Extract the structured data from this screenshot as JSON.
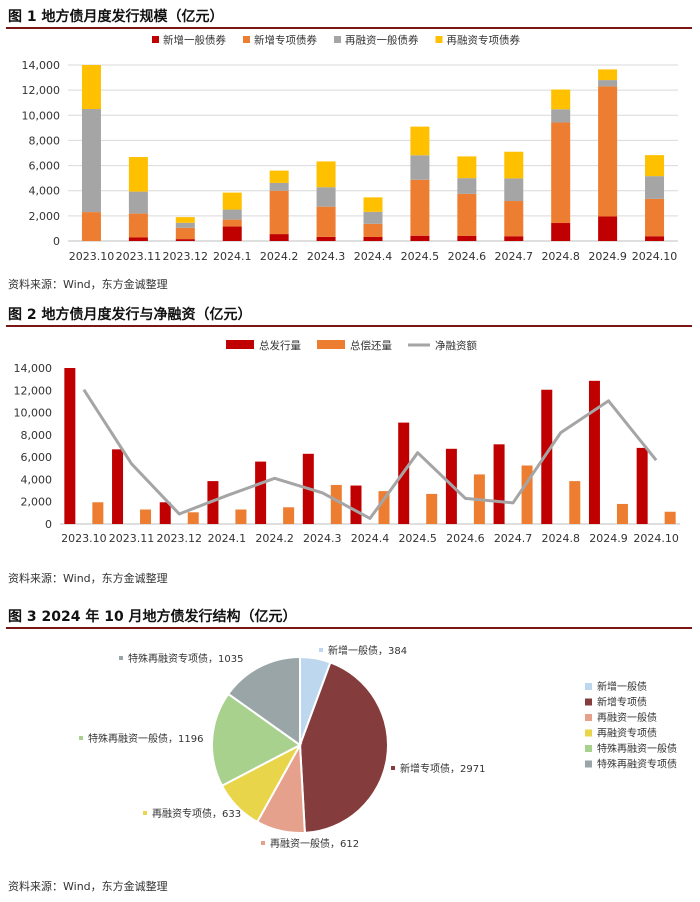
{
  "figures": {
    "fig1": {
      "title": "图 1  地方债月度发行规模（亿元）"
    },
    "fig2": {
      "title": "图 2  地方债月度发行与净融资（亿元）"
    },
    "fig3": {
      "title": "图 3  2024 年 10 月地方债发行结构（亿元）"
    }
  },
  "source": "资料来源：Wind，东方金诚整理",
  "colors": {
    "dark_red": "#c00000",
    "orange": "#ed7d31",
    "gray": "#a5a5a5",
    "gold": "#ffc000",
    "title_rule": "#7a1616"
  },
  "chart_data": [
    {
      "id": "fig1",
      "type": "bar",
      "stacked": true,
      "categories": [
        "2023.10",
        "2023.11",
        "2023.12",
        "2024.1",
        "2024.2",
        "2024.3",
        "2024.4",
        "2024.5",
        "2024.6",
        "2024.7",
        "2024.8",
        "2024.9",
        "2024.10"
      ],
      "ylim": [
        0,
        14000
      ],
      "yticks": [
        0,
        2000,
        4000,
        6000,
        8000,
        10000,
        12000,
        14000
      ],
      "ytick_labels": [
        "0",
        "2,000",
        "4,000",
        "6,000",
        "8,000",
        "10,000",
        "12,000",
        "14,000"
      ],
      "grid": true,
      "legend_position": "top",
      "series": [
        {
          "name": "新增一般债券",
          "color": "#c00000",
          "values": [
            0,
            280,
            150,
            1150,
            550,
            330,
            320,
            420,
            400,
            380,
            1430,
            1950,
            380
          ]
        },
        {
          "name": "新增专项债券",
          "color": "#ed7d31",
          "values": [
            2300,
            1900,
            900,
            550,
            3450,
            2400,
            1050,
            4450,
            3350,
            2800,
            8000,
            10350,
            2970
          ]
        },
        {
          "name": "再融资一般债券",
          "color": "#a5a5a5",
          "values": [
            8200,
            1750,
            400,
            800,
            620,
            1550,
            950,
            1950,
            1250,
            1800,
            1050,
            500,
            1810
          ]
        },
        {
          "name": "再融资专项债券",
          "color": "#ffc000",
          "values": [
            3500,
            2750,
            450,
            1350,
            980,
            2050,
            1150,
            2280,
            1730,
            2120,
            1570,
            850,
            1670
          ]
        }
      ]
    },
    {
      "id": "fig2",
      "type": "bar",
      "categories": [
        "2023.10",
        "2023.11",
        "2023.12",
        "2024.1",
        "2024.2",
        "2024.3",
        "2024.4",
        "2024.5",
        "2024.6",
        "2024.7",
        "2024.8",
        "2024.9",
        "2024.10"
      ],
      "ylim": [
        0,
        14000
      ],
      "yticks": [
        0,
        2000,
        4000,
        6000,
        8000,
        10000,
        12000,
        14000
      ],
      "ytick_labels": [
        "0",
        "2,000",
        "4,000",
        "6,000",
        "8,000",
        "10,000",
        "12,000",
        "14,000"
      ],
      "grid": false,
      "legend_position": "top",
      "series": [
        {
          "name": "总发行量",
          "kind": "bar",
          "color": "#c00000",
          "values": [
            14000,
            6700,
            1950,
            3850,
            5600,
            6300,
            3450,
            9100,
            6750,
            7150,
            12050,
            12850,
            6830
          ]
        },
        {
          "name": "总偿还量",
          "kind": "bar",
          "color": "#ed7d31",
          "values": [
            1950,
            1300,
            1050,
            1300,
            1500,
            3500,
            2950,
            2700,
            4450,
            5250,
            3850,
            1800,
            1100
          ]
        },
        {
          "name": "净融资额",
          "kind": "line",
          "color": "#a5a5a5",
          "values": [
            12050,
            5400,
            900,
            2550,
            4100,
            2800,
            500,
            6400,
            2300,
            1900,
            8200,
            11050,
            5730
          ]
        }
      ]
    },
    {
      "id": "fig3",
      "type": "pie",
      "legend_position": "right",
      "slices": [
        {
          "name": "新增一般债",
          "value": 384,
          "color": "#bdd7ee",
          "label": "新增一般债，384"
        },
        {
          "name": "新增专项债",
          "value": 2971,
          "color": "#843c3c",
          "label": "新增专项债，2971"
        },
        {
          "name": "再融资一般债",
          "value": 612,
          "color": "#e6a18d",
          "label": "再融资一般债，612"
        },
        {
          "name": "再融资专项债",
          "value": 633,
          "color": "#e8d54a",
          "label": "再融资专项债，633"
        },
        {
          "name": "特殊再融资一般债",
          "value": 1196,
          "color": "#a9d18e",
          "label": "特殊再融资一般债，1196"
        },
        {
          "name": "特殊再融资专项债",
          "value": 1035,
          "color": "#9aa5a8",
          "label": "特殊再融资专项债，1035"
        }
      ]
    }
  ]
}
